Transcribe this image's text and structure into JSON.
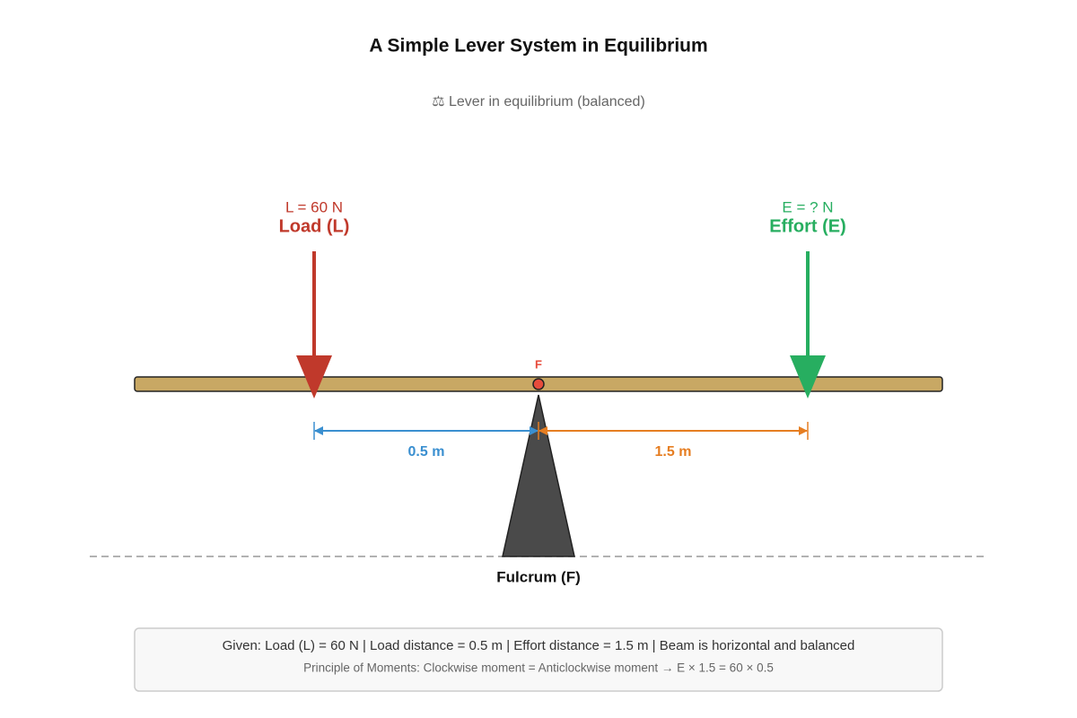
{
  "title": "A Simple Lever System in Equilibrium",
  "subtitle": "⚖ Lever in equilibrium (balanced)",
  "load": {
    "value_text": "L = 60 N",
    "label": "Load (L)"
  },
  "effort": {
    "value_text": "E = ? N",
    "label": "Effort (E)"
  },
  "pivot_label": "F",
  "load_distance": "0.5 m",
  "effort_distance": "1.5 m",
  "fulcrum_label": "Fulcrum (F)",
  "info": {
    "given": "Given: Load (L) = 60 N | Load distance = 0.5 m | Effort distance = 1.5 m | Beam is horizontal and balanced",
    "principle": "Principle of Moments: Clockwise moment = Anticlockwise moment → E × 1.5 = 60 × 0.5"
  }
}
